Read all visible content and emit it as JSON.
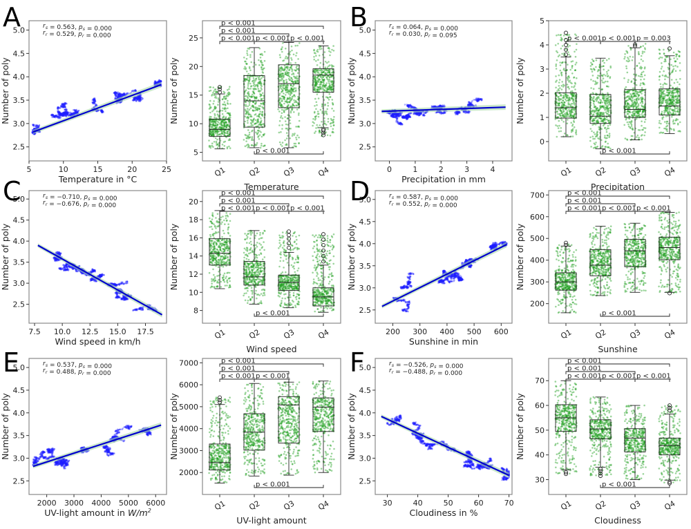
{
  "chart_data": [
    {
      "panel": "A",
      "type": "scatter",
      "xlabel": "Temperature in °C",
      "ylabel": "Number of poly",
      "xlim": [
        5,
        25
      ],
      "ylim": [
        2.2,
        5.2
      ],
      "xticks": [
        5,
        10,
        15,
        20,
        25
      ],
      "yticks": [
        2.5,
        3.0,
        3.5,
        4.0,
        4.5,
        5.0
      ],
      "stat_lines": [
        "r_s = 0.563, p_s = 0.000",
        "r_r = 0.529, p_r = 0.000"
      ],
      "regression": {
        "x": [
          5.6,
          24.2
        ],
        "y": [
          2.82,
          3.83
        ]
      },
      "scatter_range": {
        "x": [
          5.5,
          24.2
        ],
        "y": [
          2.35,
          4.75
        ]
      }
    },
    {
      "panel": "A",
      "type": "box",
      "xlabel": "Temperature",
      "ylabel": "Number of poly",
      "categories": [
        "Q1",
        "Q2",
        "Q3",
        "Q4"
      ],
      "ylim": [
        3.5,
        28
      ],
      "yticks": [
        5,
        10,
        15,
        20,
        25
      ],
      "boxes": [
        {
          "whislo": 5.6,
          "q1": 7.8,
          "med": 9.0,
          "q3": 10.8,
          "whishi": 15.2,
          "fliers": [
            15.5,
            16.0,
            16.4
          ]
        },
        {
          "whislo": 5.8,
          "q1": 9.4,
          "med": 14.0,
          "q3": 18.4,
          "whishi": 23.3,
          "fliers": []
        },
        {
          "whislo": 5.8,
          "q1": 12.8,
          "med": 17.0,
          "q3": 20.3,
          "whishi": 24.2,
          "fliers": []
        },
        {
          "whislo": 9.3,
          "q1": 15.5,
          "med": 18.5,
          "q3": 19.6,
          "whishi": 23.6,
          "fliers": [
            8.0,
            8.4,
            8.8,
            9.0
          ]
        }
      ],
      "scatter_range": [
        [
          5.6,
          16.5
        ],
        [
          5.8,
          23.3
        ],
        [
          5.8,
          24.2
        ],
        [
          7.8,
          23.6
        ]
      ],
      "significance": [
        {
          "from": 0,
          "to": 3,
          "label": "p < 0.001",
          "level": 3
        },
        {
          "from": 0,
          "to": 2,
          "label": "p < 0.001",
          "level": 2
        },
        {
          "from": 0,
          "to": 1,
          "label": "p < 0.001",
          "level": 1
        },
        {
          "from": 1,
          "to": 2,
          "label": "p < 0.001",
          "level": 1
        },
        {
          "from": 2,
          "to": 3,
          "label": "p < 0.001",
          "level": 1
        },
        {
          "from": 1,
          "to": 3,
          "label": "p < 0.001",
          "level": 0
        }
      ]
    },
    {
      "panel": "B",
      "type": "scatter",
      "xlabel": "Precipitation in mm",
      "ylabel": "Number of poly",
      "xlim": [
        -0.55,
        4.75
      ],
      "ylim": [
        2.2,
        5.2
      ],
      "xticks": [
        0,
        1,
        2,
        3,
        4
      ],
      "yticks": [
        2.5,
        3.0,
        3.5,
        4.0,
        4.5,
        5.0
      ],
      "stat_lines": [
        "r_s = 0.064, p_s = 0.000",
        "r_r = 0.030, p_r = 0.095"
      ],
      "regression": {
        "x": [
          -0.3,
          4.5
        ],
        "y": [
          3.26,
          3.35
        ]
      },
      "scatter_range": {
        "x": [
          -0.3,
          4.5
        ],
        "y": [
          2.35,
          4.75
        ]
      }
    },
    {
      "panel": "B",
      "type": "box",
      "xlabel": "Precipitation",
      "ylabel": "Number of poly",
      "categories": [
        "Q1",
        "Q2",
        "Q3",
        "Q4"
      ],
      "ylim": [
        -0.8,
        5.0
      ],
      "yticks": [
        0,
        1,
        2,
        3,
        4,
        5
      ],
      "boxes": [
        {
          "whislo": 0.2,
          "q1": 0.97,
          "med": 1.4,
          "q3": 2.02,
          "whishi": 3.5,
          "fliers": [
            3.6,
            3.8,
            4.0,
            4.2,
            4.5
          ]
        },
        {
          "whislo": -0.3,
          "q1": 0.75,
          "med": 1.05,
          "q3": 1.95,
          "whishi": 3.45,
          "fliers": []
        },
        {
          "whislo": 0.07,
          "q1": 1.0,
          "med": 1.33,
          "q3": 2.15,
          "whishi": 3.88,
          "fliers": [
            3.95,
            4.02
          ]
        },
        {
          "whislo": 0.33,
          "q1": 1.1,
          "med": 1.47,
          "q3": 2.18,
          "whishi": 3.55,
          "fliers": [
            3.85
          ]
        }
      ],
      "scatter_range": [
        [
          0.2,
          4.5
        ],
        [
          -0.3,
          3.45
        ],
        [
          0.07,
          4.05
        ],
        [
          0.33,
          3.85
        ]
      ],
      "significance": [
        {
          "from": 0,
          "to": 1,
          "label": "p < 0.001",
          "level": 1
        },
        {
          "from": 1,
          "to": 2,
          "label": "p < 0.001",
          "level": 1
        },
        {
          "from": 2,
          "to": 3,
          "label": "p = 0.003",
          "level": 1
        },
        {
          "from": 1,
          "to": 3,
          "label": "p < 0.001",
          "level": 0
        }
      ]
    },
    {
      "panel": "C",
      "type": "scatter",
      "xlabel": "Wind speed in km/h",
      "ylabel": "Number of poly",
      "xlim": [
        7.0,
        19.4
      ],
      "ylim": [
        2.05,
        5.2
      ],
      "xticks": [
        7.5,
        10.0,
        12.5,
        15.0,
        17.5
      ],
      "yticks": [
        2.5,
        3.0,
        3.5,
        4.0,
        4.5,
        5.0
      ],
      "stat_lines": [
        "r_s = −0.710, p_s = 0.000",
        "r_r = −0.676, p_r = 0.000"
      ],
      "regression": {
        "x": [
          7.8,
          19.0
        ],
        "y": [
          3.9,
          2.25
        ]
      },
      "scatter_range": {
        "x": [
          7.8,
          19.0
        ],
        "y": [
          2.35,
          4.75
        ]
      }
    },
    {
      "panel": "C",
      "type": "box",
      "xlabel": "Wind speed",
      "ylabel": "Number of poly",
      "categories": [
        "Q1",
        "Q2",
        "Q3",
        "Q4"
      ],
      "ylim": [
        6.6,
        21.2
      ],
      "yticks": [
        8,
        10,
        12,
        14,
        16,
        18,
        20
      ],
      "boxes": [
        {
          "whislo": 10.4,
          "q1": 13.0,
          "med": 14.3,
          "q3": 15.9,
          "whishi": 19.0,
          "fliers": []
        },
        {
          "whislo": 8.7,
          "q1": 10.8,
          "med": 11.7,
          "q3": 13.4,
          "whishi": 16.8,
          "fliers": []
        },
        {
          "whislo": 8.3,
          "q1": 10.2,
          "med": 11.1,
          "q3": 11.9,
          "whishi": 14.4,
          "fliers": [
            14.9,
            15.4,
            15.9,
            16.3,
            16.7
          ]
        },
        {
          "whislo": 7.8,
          "q1": 8.5,
          "med": 9.5,
          "q3": 10.5,
          "whishi": 13.0,
          "fliers": [
            13.4,
            14.0,
            14.6,
            15.2,
            15.8,
            16.4
          ]
        }
      ],
      "scatter_range": [
        [
          10.4,
          19.0
        ],
        [
          8.7,
          16.8
        ],
        [
          8.3,
          16.7
        ],
        [
          7.8,
          16.4
        ]
      ],
      "significance": [
        {
          "from": 0,
          "to": 3,
          "label": "p < 0.001",
          "level": 3
        },
        {
          "from": 0,
          "to": 2,
          "label": "p < 0.001",
          "level": 2
        },
        {
          "from": 0,
          "to": 1,
          "label": "p < 0.001",
          "level": 1
        },
        {
          "from": 1,
          "to": 2,
          "label": "p < 0.001",
          "level": 1
        },
        {
          "from": 2,
          "to": 3,
          "label": "p < 0.001",
          "level": 1
        },
        {
          "from": 1,
          "to": 3,
          "label": "p < 0.001",
          "level": 0
        }
      ]
    },
    {
      "panel": "D",
      "type": "scatter",
      "xlabel": "Sunshine in min",
      "ylabel": "Number of poly",
      "xlim": [
        135,
        640
      ],
      "ylim": [
        2.2,
        5.2
      ],
      "xticks": [
        200,
        300,
        400,
        500,
        600
      ],
      "yticks": [
        2.5,
        3.0,
        3.5,
        4.0,
        4.5,
        5.0
      ],
      "stat_lines": [
        "r_s = 0.587, p_s = 0.000",
        "r_r = 0.552, p_r = 0.000"
      ],
      "regression": {
        "x": [
          160,
          620
        ],
        "y": [
          2.58,
          3.98
        ]
      },
      "scatter_range": {
        "x": [
          160,
          620
        ],
        "y": [
          2.35,
          4.75
        ]
      }
    },
    {
      "panel": "D",
      "type": "box",
      "xlabel": "Sunshine",
      "ylabel": "Number of poly",
      "categories": [
        "Q1",
        "Q2",
        "Q3",
        "Q4"
      ],
      "ylim": [
        110,
        720
      ],
      "yticks": [
        200,
        300,
        400,
        500,
        600,
        700
      ],
      "boxes": [
        {
          "whislo": 158,
          "q1": 262,
          "med": 300,
          "q3": 342,
          "whishi": 465,
          "fliers": [
            470,
            480
          ]
        },
        {
          "whislo": 237,
          "q1": 328,
          "med": 377,
          "q3": 448,
          "whishi": 556,
          "fliers": []
        },
        {
          "whislo": 252,
          "q1": 370,
          "med": 443,
          "q3": 496,
          "whishi": 570,
          "fliers": []
        },
        {
          "whislo": 252,
          "q1": 402,
          "med": 458,
          "q3": 506,
          "whishi": 620,
          "fliers": [
            248
          ]
        }
      ],
      "scatter_range": [
        [
          158,
          480
        ],
        [
          237,
          556
        ],
        [
          252,
          570
        ],
        [
          248,
          620
        ]
      ],
      "significance": [
        {
          "from": 0,
          "to": 3,
          "label": "p < 0.001",
          "level": 3
        },
        {
          "from": 0,
          "to": 2,
          "label": "p < 0.001",
          "level": 2
        },
        {
          "from": 0,
          "to": 1,
          "label": "p < 0.001",
          "level": 1
        },
        {
          "from": 1,
          "to": 2,
          "label": "p < 0.001",
          "level": 1
        },
        {
          "from": 2,
          "to": 3,
          "label": "p < 0.001",
          "level": 1
        },
        {
          "from": 1,
          "to": 3,
          "label": "p < 0.001",
          "level": 0
        }
      ]
    },
    {
      "panel": "E",
      "type": "scatter",
      "xlabel": "UV-light amount in W/m²",
      "ylabel": "Number of poly",
      "xlim": [
        1350,
        6400
      ],
      "ylim": [
        2.2,
        5.2
      ],
      "xticks": [
        2000,
        3000,
        4000,
        5000,
        6000
      ],
      "yticks": [
        2.5,
        3.0,
        3.5,
        4.0,
        4.5,
        5.0
      ],
      "stat_lines": [
        "r_s = 0.537, p_s = 0.000",
        "r_r = 0.488, p_r = 0.000"
      ],
      "regression": {
        "x": [
          1500,
          6200
        ],
        "y": [
          2.82,
          3.73
        ]
      },
      "scatter_range": {
        "x": [
          1500,
          6150
        ],
        "y": [
          2.35,
          4.75
        ]
      }
    },
    {
      "panel": "E",
      "type": "box",
      "xlabel": "UV-light amount",
      "ylabel": "Number of poly",
      "categories": [
        "Q1",
        "Q2",
        "Q3",
        "Q4"
      ],
      "ylim": [
        1000,
        7200
      ],
      "yticks": [
        2000,
        3000,
        4000,
        5000,
        6000,
        7000
      ],
      "boxes": [
        {
          "whislo": 1520,
          "q1": 2120,
          "med": 2450,
          "q3": 3300,
          "whishi": 5100,
          "fliers": [
            5200,
            5300,
            5420
          ]
        },
        {
          "whislo": 1840,
          "q1": 3020,
          "med": 3840,
          "q3": 4680,
          "whishi": 6060,
          "fliers": []
        },
        {
          "whislo": 1880,
          "q1": 3340,
          "med": 5080,
          "q3": 5460,
          "whishi": 6120,
          "fliers": []
        },
        {
          "whislo": 2000,
          "q1": 3870,
          "med": 4980,
          "q3": 5400,
          "whishi": 6170,
          "fliers": []
        }
      ],
      "scatter_range": [
        [
          1520,
          5420
        ],
        [
          1840,
          6060
        ],
        [
          1880,
          6120
        ],
        [
          2000,
          6170
        ]
      ],
      "significance": [
        {
          "from": 0,
          "to": 3,
          "label": "p < 0.001",
          "level": 3
        },
        {
          "from": 0,
          "to": 2,
          "label": "p < 0.001",
          "level": 2
        },
        {
          "from": 0,
          "to": 1,
          "label": "p < 0.001",
          "level": 1
        },
        {
          "from": 1,
          "to": 2,
          "label": "p < 0.001",
          "level": 1
        },
        {
          "from": 1,
          "to": 3,
          "label": "p < 0.001",
          "level": 0
        }
      ]
    },
    {
      "panel": "F",
      "type": "scatter",
      "xlabel": "Cloudiness in %",
      "ylabel": "Number of poly",
      "xlim": [
        26,
        71
      ],
      "ylim": [
        2.2,
        5.2
      ],
      "xticks": [
        30,
        40,
        50,
        60,
        70
      ],
      "yticks": [
        2.5,
        3.0,
        3.5,
        4.0,
        4.5,
        5.0
      ],
      "stat_lines": [
        "r_s = −0.526, p_s = 0.000",
        "r_r = −0.488, p_r = 0.000"
      ],
      "regression": {
        "x": [
          28,
          70
        ],
        "y": [
          3.92,
          2.62
        ]
      },
      "scatter_range": {
        "x": [
          28,
          70
        ],
        "y": [
          2.35,
          4.75
        ]
      }
    },
    {
      "panel": "F",
      "type": "box",
      "xlabel": "Cloudiness",
      "ylabel": "Number of poly",
      "categories": [
        "Q1",
        "Q2",
        "Q3",
        "Q4"
      ],
      "ylim": [
        24,
        79
      ],
      "yticks": [
        30,
        40,
        50,
        60,
        70
      ],
      "boxes": [
        {
          "whislo": 34,
          "q1": 49.5,
          "med": 55,
          "q3": 60.3,
          "whishi": 70,
          "fliers": [
            32.3,
            33
          ]
        },
        {
          "whislo": 35,
          "q1": 46.5,
          "med": 50.5,
          "q3": 54.2,
          "whishi": 63.4,
          "fliers": [
            31.5,
            32.5,
            33.5,
            34.3
          ]
        },
        {
          "whislo": 30,
          "q1": 41.2,
          "med": 46.8,
          "q3": 50.6,
          "whishi": 60,
          "fliers": []
        },
        {
          "whislo": 29.8,
          "q1": 40,
          "med": 43.8,
          "q3": 46.8,
          "whishi": 56.5,
          "fliers": [
            28.5,
            29,
            58,
            59,
            60
          ]
        }
      ],
      "scatter_range": [
        [
          32.3,
          70
        ],
        [
          31.5,
          63.4
        ],
        [
          30,
          60
        ],
        [
          28.5,
          60
        ]
      ],
      "significance": [
        {
          "from": 0,
          "to": 3,
          "label": "p < 0.001",
          "level": 3
        },
        {
          "from": 0,
          "to": 2,
          "label": "p < 0.001",
          "level": 2
        },
        {
          "from": 0,
          "to": 1,
          "label": "p < 0.001",
          "level": 1
        },
        {
          "from": 1,
          "to": 2,
          "label": "p < 0.001",
          "level": 1
        },
        {
          "from": 2,
          "to": 3,
          "label": "p < 0.001",
          "level": 1
        },
        {
          "from": 1,
          "to": 3,
          "label": "p < 0.001",
          "level": 0
        }
      ]
    }
  ],
  "panel_letters": [
    "A",
    "B",
    "C",
    "D",
    "E",
    "F"
  ],
  "colors": {
    "scatter": "#1f1fff",
    "regression": "#0000cc",
    "ci_band": "#a8d8a8",
    "box_points": "#22a022",
    "box_edge": "#222222",
    "frame": "#888888"
  }
}
